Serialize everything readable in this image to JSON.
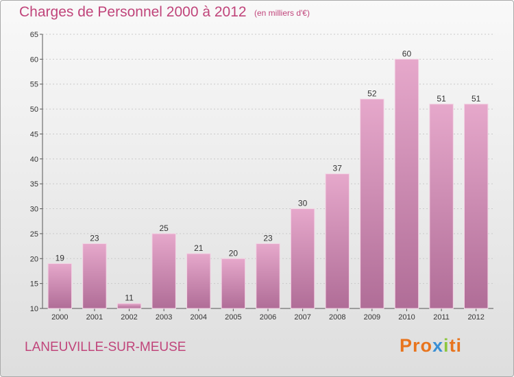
{
  "header": {
    "title": "Charges de Personnel 2000 à 2012",
    "subtitle": "(en milliers d'€)"
  },
  "footer": {
    "city": "LANEUVILLE-SUR-MEUSE",
    "logo": {
      "p1": "Pro",
      "p2": "x",
      "p3": "i",
      "p4": "ti"
    }
  },
  "colors": {
    "accent": "#c0447a",
    "bar_top": "#e6a8cb",
    "bar_bottom": "#b06d97"
  },
  "chart_data": {
    "type": "bar",
    "categories": [
      "2000",
      "2001",
      "2002",
      "2003",
      "2004",
      "2005",
      "2006",
      "2007",
      "2008",
      "2009",
      "2010",
      "2011",
      "2012"
    ],
    "values": [
      19,
      23,
      11,
      25,
      21,
      20,
      23,
      30,
      37,
      52,
      60,
      51,
      51
    ],
    "title": "Charges de Personnel 2000 à 2012",
    "xlabel": "",
    "ylabel": "",
    "ylim": [
      10,
      65
    ],
    "yticks": [
      10,
      15,
      20,
      25,
      30,
      35,
      40,
      45,
      50,
      55,
      60,
      65
    ],
    "grid": true,
    "data_labels": true
  }
}
